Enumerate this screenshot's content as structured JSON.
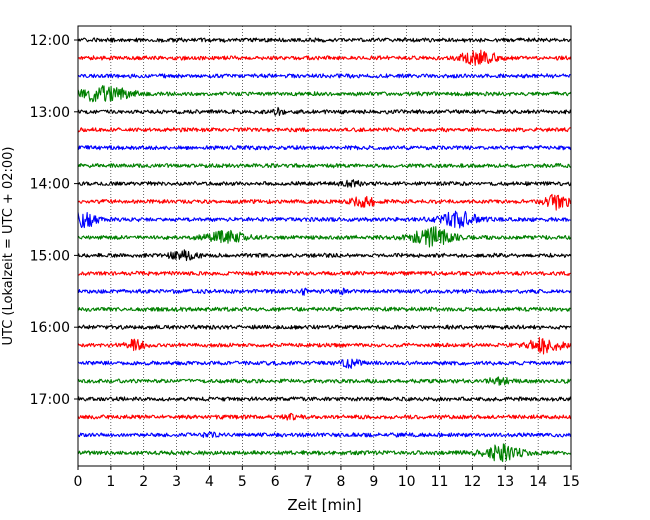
{
  "chart_data": {
    "type": "line",
    "title": "",
    "xlabel": "Zeit  [min]",
    "ylabel": "UTC (Lokalzeit = UTC + 02:00)",
    "xlim": [
      0,
      15
    ],
    "x_ticks": [
      0,
      1,
      2,
      3,
      4,
      5,
      6,
      7,
      8,
      9,
      10,
      11,
      12,
      13,
      14,
      15
    ],
    "x_tick_labels": [
      "0",
      "1",
      "2",
      "3",
      "4",
      "5",
      "6",
      "7",
      "8",
      "9",
      "10",
      "11",
      "12",
      "13",
      "14",
      "15"
    ],
    "y_tick_labels": [
      "12:00",
      "13:00",
      "14:00",
      "15:00",
      "16:00",
      "17:00"
    ],
    "y_tick_rows": [
      0,
      4,
      8,
      12,
      16,
      20
    ],
    "grid": "vertical dotted at every minute",
    "legend": "none",
    "row_interval_minutes": 15,
    "start_time": "12:00",
    "color_cycle": [
      "#000000",
      "#ff0000",
      "#0000ff",
      "#008000"
    ],
    "series": [
      {
        "start": "12:00",
        "color": "#000000",
        "events": []
      },
      {
        "start": "12:15",
        "color": "#ff0000",
        "events": [
          {
            "t": 12.2,
            "amp": 8,
            "width": 0.5
          }
        ]
      },
      {
        "start": "12:30",
        "color": "#0000ff",
        "events": []
      },
      {
        "start": "12:45",
        "color": "#008000",
        "events": [
          {
            "t": 0.6,
            "amp": 7,
            "width": 0.6
          },
          {
            "t": 1.4,
            "amp": 3,
            "width": 0.4
          }
        ]
      },
      {
        "start": "13:00",
        "color": "#000000",
        "events": [
          {
            "t": 6.1,
            "amp": 3,
            "width": 0.15
          }
        ]
      },
      {
        "start": "13:15",
        "color": "#ff0000",
        "events": []
      },
      {
        "start": "13:30",
        "color": "#0000ff",
        "events": []
      },
      {
        "start": "13:45",
        "color": "#008000",
        "events": []
      },
      {
        "start": "14:00",
        "color": "#000000",
        "events": [
          {
            "t": 8.3,
            "amp": 2.5,
            "width": 0.3
          }
        ]
      },
      {
        "start": "14:15",
        "color": "#ff0000",
        "events": [
          {
            "t": 8.7,
            "amp": 4,
            "width": 0.4
          },
          {
            "t": 14.6,
            "amp": 7,
            "width": 0.35
          }
        ]
      },
      {
        "start": "14:30",
        "color": "#0000ff",
        "events": [
          {
            "t": 0.2,
            "amp": 8,
            "width": 0.4
          },
          {
            "t": 11.6,
            "amp": 7,
            "width": 0.6
          }
        ]
      },
      {
        "start": "14:45",
        "color": "#008000",
        "events": [
          {
            "t": 4.5,
            "amp": 6,
            "width": 0.6
          },
          {
            "t": 10.8,
            "amp": 9,
            "width": 0.6
          }
        ]
      },
      {
        "start": "15:00",
        "color": "#000000",
        "events": [
          {
            "t": 3.2,
            "amp": 4,
            "width": 0.4
          }
        ]
      },
      {
        "start": "15:15",
        "color": "#ff0000",
        "events": []
      },
      {
        "start": "15:30",
        "color": "#0000ff",
        "events": [
          {
            "t": 6.9,
            "amp": 3,
            "width": 0.1
          },
          {
            "t": 8.0,
            "amp": 3,
            "width": 0.1
          }
        ]
      },
      {
        "start": "15:45",
        "color": "#008000",
        "events": []
      },
      {
        "start": "16:00",
        "color": "#000000",
        "events": []
      },
      {
        "start": "16:15",
        "color": "#ff0000",
        "events": [
          {
            "t": 1.7,
            "amp": 5,
            "width": 0.3
          },
          {
            "t": 14.2,
            "amp": 7,
            "width": 0.5
          }
        ]
      },
      {
        "start": "16:30",
        "color": "#0000ff",
        "events": [
          {
            "t": 8.3,
            "amp": 4,
            "width": 0.25
          }
        ]
      },
      {
        "start": "16:45",
        "color": "#008000",
        "events": [
          {
            "t": 12.8,
            "amp": 3,
            "width": 0.3
          }
        ]
      },
      {
        "start": "17:00",
        "color": "#000000",
        "events": []
      },
      {
        "start": "17:15",
        "color": "#ff0000",
        "events": [
          {
            "t": 6.5,
            "amp": 2,
            "width": 0.2
          }
        ]
      },
      {
        "start": "17:30",
        "color": "#0000ff",
        "events": [
          {
            "t": 4.0,
            "amp": 2,
            "width": 0.2
          }
        ]
      },
      {
        "start": "17:45",
        "color": "#008000",
        "events": [
          {
            "t": 12.9,
            "amp": 7,
            "width": 0.6
          }
        ]
      }
    ]
  }
}
